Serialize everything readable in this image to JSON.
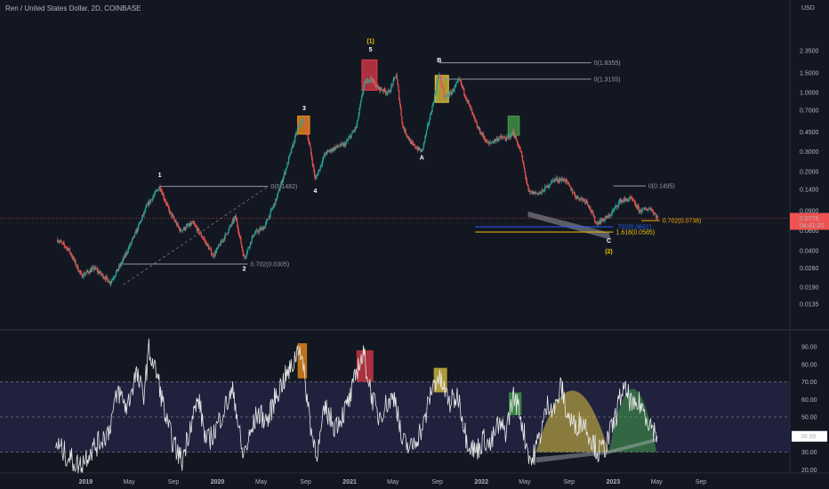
{
  "header": {
    "title": "Ren / United States Dollar, 2D, COINBASE"
  },
  "chart_data": [
    {
      "type": "candlestick",
      "title": "Ren / United States Dollar, 2D, COINBASE",
      "y_unit": "USD",
      "y_scale": "log",
      "y_ticks": [
        "2.3500",
        "1.5000",
        "1.0000",
        "0.7000",
        "0.4500",
        "0.3000",
        "0.2000",
        "0.1400",
        "0.0900",
        "0.0600",
        "0.0400",
        "0.0280",
        "0.0190",
        "0.0135"
      ],
      "x_ticks": [
        "2019",
        "May",
        "Sep",
        "2020",
        "May",
        "Sep",
        "2021",
        "May",
        "Sep",
        "2022",
        "May",
        "Sep",
        "2023",
        "May",
        "Sep"
      ],
      "price_path": [
        [
          "2018-10-15",
          0.05
        ],
        [
          "2018-11-15",
          0.041
        ],
        [
          "2018-12-20",
          0.024
        ],
        [
          "2019-01-25",
          0.028
        ],
        [
          "2019-03-10",
          0.021
        ],
        [
          "2019-04-10",
          0.031
        ],
        [
          "2019-05-20",
          0.058
        ],
        [
          "2019-06-20",
          0.1
        ],
        [
          "2019-07-25",
          0.148
        ],
        [
          "2019-08-20",
          0.09
        ],
        [
          "2019-09-20",
          0.06
        ],
        [
          "2019-10-25",
          0.07
        ],
        [
          "2019-11-25",
          0.05
        ],
        [
          "2019-12-20",
          0.036
        ],
        [
          "2020-01-25",
          0.056
        ],
        [
          "2020-02-20",
          0.08
        ],
        [
          "2020-03-15",
          0.034
        ],
        [
          "2020-04-10",
          0.056
        ],
        [
          "2020-05-10",
          0.065
        ],
        [
          "2020-06-10",
          0.11
        ],
        [
          "2020-07-10",
          0.22
        ],
        [
          "2020-08-12",
          0.5
        ],
        [
          "2020-08-28",
          0.59
        ],
        [
          "2020-09-12",
          0.34
        ],
        [
          "2020-09-28",
          0.17
        ],
        [
          "2020-10-25",
          0.29
        ],
        [
          "2020-11-25",
          0.33
        ],
        [
          "2020-12-20",
          0.35
        ],
        [
          "2021-01-20",
          0.5
        ],
        [
          "2021-02-10",
          1.2
        ],
        [
          "2021-02-28",
          1.35
        ],
        [
          "2021-03-20",
          1.1
        ],
        [
          "2021-04-20",
          1.0
        ],
        [
          "2021-05-10",
          1.45
        ],
        [
          "2021-05-28",
          0.5
        ],
        [
          "2021-06-22",
          0.35
        ],
        [
          "2021-07-20",
          0.3
        ],
        [
          "2021-08-20",
          0.8
        ],
        [
          "2021-09-06",
          1.5
        ],
        [
          "2021-09-20",
          0.9
        ],
        [
          "2021-10-10",
          1.0
        ],
        [
          "2021-11-01",
          1.3
        ],
        [
          "2021-11-20",
          0.9
        ],
        [
          "2021-12-20",
          0.5
        ],
        [
          "2022-01-20",
          0.35
        ],
        [
          "2022-02-20",
          0.4
        ],
        [
          "2022-03-15",
          0.39
        ],
        [
          "2022-03-30",
          0.45
        ],
        [
          "2022-04-20",
          0.3
        ],
        [
          "2022-05-12",
          0.13
        ],
        [
          "2022-06-15",
          0.13
        ],
        [
          "2022-07-20",
          0.17
        ],
        [
          "2022-08-20",
          0.17
        ],
        [
          "2022-09-20",
          0.12
        ],
        [
          "2022-10-20",
          0.11
        ],
        [
          "2022-11-15",
          0.07
        ],
        [
          "2022-12-20",
          0.08
        ],
        [
          "2023-01-20",
          0.11
        ],
        [
          "2023-02-20",
          0.115
        ],
        [
          "2023-03-15",
          0.09
        ],
        [
          "2023-04-15",
          0.095
        ],
        [
          "2023-05-04",
          0.0775
        ]
      ],
      "last_price_label": "0.0775",
      "countdown_label": "04:41:25",
      "wave_labels": [
        {
          "text": "1",
          "date": "2019-07-25",
          "price": 0.18,
          "color": "#ffffff"
        },
        {
          "text": "2",
          "date": "2020-03-15",
          "price": 0.0265,
          "color": "#ffffff"
        },
        {
          "text": "3",
          "date": "2020-08-28",
          "price": 0.7,
          "color": "#ffffff"
        },
        {
          "text": "4",
          "date": "2020-09-28",
          "price": 0.13,
          "color": "#ffffff"
        },
        {
          "text": "5",
          "date": "2021-02-28",
          "price": 2.3,
          "color": "#ffffff"
        },
        {
          "text": "(1)",
          "date": "2021-02-28",
          "price": 2.75,
          "color": "#f0c000"
        },
        {
          "text": "A",
          "date": "2021-07-20",
          "price": 0.255,
          "color": "#ffffff"
        },
        {
          "text": "B",
          "date": "2021-09-06",
          "price": 1.85,
          "color": "#ffffff"
        },
        {
          "text": "C",
          "date": "2022-12-20",
          "price": 0.047,
          "color": "#ffffff"
        },
        {
          "text": "(2)",
          "date": "2022-12-20",
          "price": 0.038,
          "color": "#f0c000"
        }
      ],
      "fib_levels": [
        {
          "label": "0(0.1482)",
          "value": 0.1482,
          "from": "2019-07-25",
          "to": "2020-05-20",
          "color": "#9598a1"
        },
        {
          "label": "0.702(0.0305)",
          "value": 0.0305,
          "from": "2019-04-15",
          "to": "2020-03-25",
          "color": "#9598a1"
        },
        {
          "label": "0(1.8355)",
          "value": 1.8355,
          "from": "2021-09-06",
          "to": "2022-11-01",
          "color": "#9598a1"
        },
        {
          "label": "0(1.3155)",
          "value": 1.3155,
          "from": "2021-09-06",
          "to": "2022-11-01",
          "color": "#9598a1"
        },
        {
          "label": "0(0.1495)",
          "value": 0.1495,
          "from": "2023-01-01",
          "to": "2023-04-01",
          "color": "#9598a1"
        },
        {
          "label": "0.702(0.0738)",
          "value": 0.0738,
          "from": "2023-03-20",
          "to": "2023-05-10",
          "color": "#f7a600"
        },
        {
          "label": ".702(0.0651)",
          "value": 0.0651,
          "from": "2021-12-15",
          "to": "2023-01-01",
          "color": "#2962ff"
        },
        {
          "label": "1.618(0.0585)",
          "value": 0.0585,
          "from": "2021-12-15",
          "to": "2023-01-01",
          "color": "#f0c000"
        }
      ],
      "highlight_boxes": [
        {
          "from": "2020-08-10",
          "to": "2020-09-12",
          "high": 0.62,
          "low": 0.43,
          "color": "#f7931a"
        },
        {
          "from": "2021-02-04",
          "to": "2021-03-18",
          "high": 1.95,
          "low": 1.05,
          "color": "#e03a48"
        },
        {
          "from": "2021-08-26",
          "to": "2021-10-02",
          "high": 1.42,
          "low": 0.82,
          "color": "#e0c640"
        },
        {
          "from": "2022-03-16",
          "to": "2022-04-16",
          "high": 0.62,
          "low": 0.42,
          "color": "#43a047"
        }
      ]
    },
    {
      "type": "line",
      "indicator": "oscillator",
      "y_ticks": [
        "90.00",
        "80.00",
        "70.00",
        "60.00",
        "50.00",
        "40.00",
        "30.00",
        "20.00"
      ],
      "band": [
        30,
        70
      ],
      "midline": 50,
      "ylim": [
        18,
        96
      ],
      "last_value_label": "38.99",
      "values": [
        [
          "2018-10-10",
          35
        ],
        [
          "2018-11-10",
          28
        ],
        [
          "2018-12-15",
          22
        ],
        [
          "2019-01-10",
          30
        ],
        [
          "2019-02-05",
          35
        ],
        [
          "2019-03-05",
          42
        ],
        [
          "2019-04-01",
          65
        ],
        [
          "2019-04-25",
          55
        ],
        [
          "2019-05-20",
          75
        ],
        [
          "2019-06-10",
          62
        ],
        [
          "2019-06-25",
          88
        ],
        [
          "2019-07-20",
          72
        ],
        [
          "2019-08-15",
          45
        ],
        [
          "2019-09-05",
          33
        ],
        [
          "2019-09-25",
          25
        ],
        [
          "2019-10-20",
          48
        ],
        [
          "2019-11-10",
          60
        ],
        [
          "2019-12-01",
          35
        ],
        [
          "2019-12-25",
          42
        ],
        [
          "2020-01-20",
          55
        ],
        [
          "2020-02-15",
          65
        ],
        [
          "2020-03-10",
          28
        ],
        [
          "2020-03-25",
          35
        ],
        [
          "2020-04-20",
          52
        ],
        [
          "2020-05-20",
          48
        ],
        [
          "2020-06-10",
          62
        ],
        [
          "2020-07-05",
          72
        ],
        [
          "2020-07-25",
          78
        ],
        [
          "2020-08-15",
          92
        ],
        [
          "2020-09-01",
          68
        ],
        [
          "2020-09-20",
          38
        ],
        [
          "2020-10-05",
          30
        ],
        [
          "2020-10-25",
          55
        ],
        [
          "2020-11-20",
          45
        ],
        [
          "2020-12-15",
          52
        ],
        [
          "2021-01-05",
          62
        ],
        [
          "2021-01-25",
          80
        ],
        [
          "2021-02-10",
          85
        ],
        [
          "2021-02-28",
          65
        ],
        [
          "2021-03-20",
          50
        ],
        [
          "2021-04-15",
          58
        ],
        [
          "2021-05-08",
          62
        ],
        [
          "2021-05-25",
          36
        ],
        [
          "2021-06-20",
          32
        ],
        [
          "2021-07-10",
          40
        ],
        [
          "2021-07-25",
          45
        ],
        [
          "2021-08-15",
          65
        ],
        [
          "2021-09-01",
          73
        ],
        [
          "2021-09-15",
          68
        ],
        [
          "2021-10-05",
          58
        ],
        [
          "2021-10-30",
          62
        ],
        [
          "2021-11-20",
          38
        ],
        [
          "2021-12-15",
          30
        ],
        [
          "2022-01-10",
          38
        ],
        [
          "2022-01-25",
          33
        ],
        [
          "2022-02-15",
          45
        ],
        [
          "2022-03-10",
          42
        ],
        [
          "2022-03-30",
          62
        ],
        [
          "2022-04-15",
          55
        ],
        [
          "2022-05-05",
          35
        ],
        [
          "2022-05-20",
          24
        ],
        [
          "2022-06-15",
          42
        ],
        [
          "2022-07-05",
          58
        ],
        [
          "2022-07-25",
          55
        ],
        [
          "2022-08-10",
          68
        ],
        [
          "2022-08-25",
          52
        ],
        [
          "2022-09-15",
          45
        ],
        [
          "2022-10-10",
          48
        ],
        [
          "2022-11-01",
          38
        ],
        [
          "2022-11-20",
          30
        ],
        [
          "2022-12-10",
          33
        ],
        [
          "2023-01-05",
          48
        ],
        [
          "2023-01-25",
          65
        ],
        [
          "2023-02-10",
          63
        ],
        [
          "2023-02-28",
          54
        ],
        [
          "2023-03-15",
          58
        ],
        [
          "2023-04-05",
          50
        ],
        [
          "2023-04-25",
          42
        ],
        [
          "2023-05-04",
          38.99
        ]
      ],
      "highlight_boxes": [
        {
          "from": "2020-08-10",
          "to": "2020-09-05",
          "high": 92,
          "low": 72,
          "color": "#f7931a"
        },
        {
          "from": "2021-01-20",
          "to": "2021-03-08",
          "high": 88,
          "low": 70,
          "color": "#e03a48"
        },
        {
          "from": "2021-08-22",
          "to": "2021-09-28",
          "high": 78,
          "low": 64,
          "color": "#e0c640"
        },
        {
          "from": "2022-03-18",
          "to": "2022-04-22",
          "high": 64,
          "low": 51,
          "color": "#43a047"
        }
      ],
      "domes": [
        {
          "from": "2022-06-01",
          "to": "2022-12-20",
          "peak": 65,
          "color": "#e0c640"
        },
        {
          "from": "2022-12-20",
          "to": "2023-05-01",
          "peak": 66,
          "color": "#43a047"
        }
      ]
    }
  ]
}
